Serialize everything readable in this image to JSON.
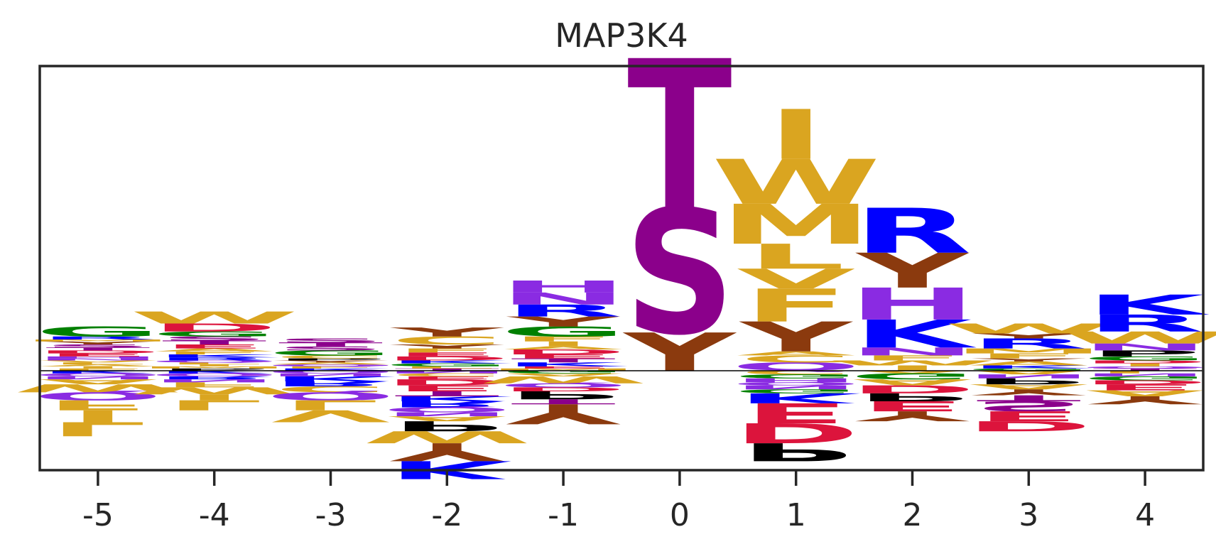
{
  "chart_data": {
    "type": "logo",
    "title": "MAP3K4",
    "x": [
      -5,
      -4,
      -3,
      -2,
      -1,
      0,
      1,
      2,
      3,
      4
    ],
    "xtick_labels": [
      "-5",
      "-4",
      "-3",
      "-2",
      "-1",
      "0",
      "1",
      "2",
      "3",
      "4"
    ],
    "ylim": [
      -1.0,
      3.05
    ],
    "baseline": 0,
    "xlabel": "",
    "ylabel": "",
    "grid": false,
    "color_key": {
      "S": "#8b008b",
      "T": "#8b008b",
      "C": "#daa520",
      "M": "#daa520",
      "W": "#daa520",
      "I": "#daa520",
      "L": "#daa520",
      "V": "#daa520",
      "F": "#daa520",
      "A": "#daa520",
      "Y": "#8b3a0e",
      "P": "#000000",
      "G": "#008000",
      "K": "#0000ff",
      "R": "#0000ff",
      "H": "#8a2be2",
      "N": "#8a2be2",
      "Q": "#8a2be2",
      "D": "#dc143c",
      "E": "#dc143c"
    },
    "positions": [
      {
        "pos": -5,
        "positive": [
          [
            "F",
            0.02
          ],
          [
            "I",
            0.02
          ],
          [
            "A",
            0.02
          ],
          [
            "L",
            0.02
          ],
          [
            "V",
            0.02
          ],
          [
            "N",
            0.02
          ],
          [
            "H",
            0.02
          ],
          [
            "E",
            0.03
          ],
          [
            "D",
            0.03
          ],
          [
            "T",
            0.03
          ],
          [
            "S",
            0.03
          ],
          [
            "Y",
            0.03
          ],
          [
            "M",
            0.02
          ],
          [
            "R",
            0.03
          ],
          [
            "G",
            0.1
          ]
        ],
        "negative": [
          [
            "K",
            0.03
          ],
          [
            "Q",
            0.03
          ],
          [
            "N",
            0.03
          ],
          [
            "A",
            0.05
          ],
          [
            "W",
            0.08
          ],
          [
            "Q",
            0.08
          ],
          [
            "F",
            0.1
          ],
          [
            "I",
            0.12
          ],
          [
            "L",
            0.14
          ]
        ]
      },
      {
        "pos": -4,
        "positive": [
          [
            "P",
            0.02
          ],
          [
            "M",
            0.02
          ],
          [
            "I",
            0.02
          ],
          [
            "L",
            0.02
          ],
          [
            "Q",
            0.02
          ],
          [
            "R",
            0.03
          ],
          [
            "K",
            0.03
          ],
          [
            "F",
            0.03
          ],
          [
            "A",
            0.03
          ],
          [
            "E",
            0.04
          ],
          [
            "T",
            0.04
          ],
          [
            "S",
            0.04
          ],
          [
            "G",
            0.05
          ],
          [
            "D",
            0.08
          ],
          [
            "W",
            0.12
          ]
        ],
        "negative": [
          [
            "K",
            0.03
          ],
          [
            "Q",
            0.03
          ],
          [
            "R",
            0.03
          ],
          [
            "N",
            0.03
          ],
          [
            "F",
            0.05
          ],
          [
            "W",
            0.07
          ],
          [
            "I",
            0.06
          ],
          [
            "L",
            0.1
          ]
        ]
      },
      {
        "pos": -3,
        "positive": [
          [
            "K",
            0.02
          ],
          [
            "F",
            0.02
          ],
          [
            "Q",
            0.02
          ],
          [
            "A",
            0.02
          ],
          [
            "Y",
            0.02
          ],
          [
            "P",
            0.02
          ],
          [
            "C",
            0.03
          ],
          [
            "G",
            0.05
          ],
          [
            "S",
            0.04
          ],
          [
            "T",
            0.04
          ],
          [
            "S",
            0.04
          ]
        ],
        "negative": [
          [
            "Q",
            0.03
          ],
          [
            "N",
            0.03
          ],
          [
            "K",
            0.05
          ],
          [
            "R",
            0.05
          ],
          [
            "C",
            0.06
          ],
          [
            "Q",
            0.08
          ],
          [
            "L",
            0.1
          ],
          [
            "V",
            0.12
          ]
        ]
      },
      {
        "pos": -2,
        "positive": [
          [
            "T",
            0.02
          ],
          [
            "L",
            0.02
          ],
          [
            "G",
            0.03
          ],
          [
            "K",
            0.03
          ],
          [
            "D",
            0.04
          ],
          [
            "E",
            0.04
          ],
          [
            "F",
            0.04
          ],
          [
            "Y",
            0.04
          ],
          [
            "C",
            0.08
          ],
          [
            "Y",
            0.09
          ]
        ],
        "negative": [
          [
            "N",
            0.03
          ],
          [
            "C",
            0.03
          ],
          [
            "E",
            0.03
          ],
          [
            "D",
            0.06
          ],
          [
            "E",
            0.06
          ],
          [
            "T",
            0.05
          ],
          [
            "K",
            0.05
          ],
          [
            "R",
            0.06
          ],
          [
            "Q",
            0.05
          ],
          [
            "N",
            0.04
          ],
          [
            "A",
            0.05
          ],
          [
            "P",
            0.1
          ],
          [
            "W",
            0.12
          ],
          [
            "Y",
            0.18
          ],
          [
            "K",
            0.18
          ]
        ]
      },
      {
        "pos": -1,
        "positive": [
          [
            "M",
            0.02
          ],
          [
            "E",
            0.02
          ],
          [
            "K",
            0.04
          ],
          [
            "T",
            0.04
          ],
          [
            "E",
            0.04
          ],
          [
            "D",
            0.05
          ],
          [
            "A",
            0.03
          ],
          [
            "I",
            0.05
          ],
          [
            "F",
            0.05
          ],
          [
            "G",
            0.1
          ],
          [
            "Y",
            0.1
          ],
          [
            "R",
            0.12
          ],
          [
            "N",
            0.12
          ],
          [
            "H",
            0.12
          ]
        ],
        "negative": [
          [
            "G",
            0.03
          ],
          [
            "A",
            0.03
          ],
          [
            "W",
            0.07
          ],
          [
            "Q",
            0.04
          ],
          [
            "D",
            0.04
          ],
          [
            "P",
            0.08
          ],
          [
            "T",
            0.05
          ],
          [
            "Y",
            0.2
          ]
        ]
      },
      {
        "pos": 0,
        "positive": [
          [
            "Y",
            0.38
          ],
          [
            "S",
            1.25
          ],
          [
            "T",
            1.5
          ]
        ],
        "negative": []
      },
      {
        "pos": 1,
        "positive": [
          [
            "Q",
            0.08
          ],
          [
            "C",
            0.07
          ],
          [
            "A",
            0.04
          ],
          [
            "Y",
            0.3
          ],
          [
            "F",
            0.33
          ],
          [
            "V",
            0.2
          ],
          [
            "L",
            0.25
          ],
          [
            "M",
            0.4
          ],
          [
            "W",
            0.45
          ],
          [
            "I",
            0.5
          ]
        ],
        "negative": [
          [
            "C",
            0.04
          ],
          [
            "G",
            0.04
          ],
          [
            "H",
            0.04
          ],
          [
            "Q",
            0.03
          ],
          [
            "N",
            0.04
          ],
          [
            "G",
            0.04
          ],
          [
            "K",
            0.1
          ],
          [
            "E",
            0.2
          ],
          [
            "D",
            0.2
          ],
          [
            "P",
            0.18
          ]
        ]
      },
      {
        "pos": 2,
        "positive": [
          [
            "I",
            0.05
          ],
          [
            "W",
            0.05
          ],
          [
            "F",
            0.05
          ],
          [
            "N",
            0.08
          ],
          [
            "K",
            0.28
          ],
          [
            "H",
            0.32
          ],
          [
            "Y",
            0.35
          ],
          [
            "R",
            0.45
          ]
        ],
        "negative": [
          [
            "A",
            0.03
          ],
          [
            "G",
            0.06
          ],
          [
            "A",
            0.06
          ],
          [
            "D",
            0.08
          ],
          [
            "P",
            0.08
          ],
          [
            "E",
            0.1
          ],
          [
            "Y",
            0.1
          ]
        ]
      },
      {
        "pos": 3,
        "positive": [
          [
            "G",
            0.02
          ],
          [
            "K",
            0.03
          ],
          [
            "A",
            0.04
          ],
          [
            "Y",
            0.03
          ],
          [
            "F",
            0.05
          ],
          [
            "M",
            0.05
          ],
          [
            "R",
            0.1
          ],
          [
            "Y",
            0.05
          ],
          [
            "W",
            0.1
          ]
        ],
        "negative": [
          [
            "A",
            0.04
          ],
          [
            "N",
            0.04
          ],
          [
            "P",
            0.06
          ],
          [
            "A",
            0.05
          ],
          [
            "Y",
            0.06
          ],
          [
            "T",
            0.06
          ],
          [
            "S",
            0.1
          ],
          [
            "E",
            0.1
          ],
          [
            "D",
            0.1
          ]
        ]
      },
      {
        "pos": 4,
        "positive": [
          [
            "T",
            0.02
          ],
          [
            "Q",
            0.02
          ],
          [
            "I",
            0.03
          ],
          [
            "D",
            0.03
          ],
          [
            "G",
            0.04
          ],
          [
            "P",
            0.06
          ],
          [
            "N",
            0.07
          ],
          [
            "W",
            0.12
          ],
          [
            "R",
            0.17
          ],
          [
            "K",
            0.2
          ]
        ],
        "negative": [
          [
            "L",
            0.03
          ],
          [
            "N",
            0.03
          ],
          [
            "G",
            0.04
          ],
          [
            "D",
            0.04
          ],
          [
            "E",
            0.06
          ],
          [
            "A",
            0.06
          ],
          [
            "Y",
            0.08
          ]
        ]
      }
    ]
  }
}
